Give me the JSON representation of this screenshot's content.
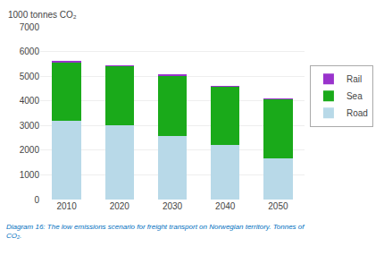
{
  "chart_data": {
    "type": "bar",
    "stacked": true,
    "categories": [
      "2010",
      "2020",
      "2030",
      "2040",
      "2050"
    ],
    "series": [
      {
        "name": "Road",
        "color": "#b8d9e8",
        "values": [
          3200,
          3000,
          2570,
          2200,
          1680
        ]
      },
      {
        "name": "Sea",
        "color": "#1aaa1a",
        "values": [
          2350,
          2420,
          2470,
          2380,
          2390
        ]
      },
      {
        "name": "Rail",
        "color": "#9933cc",
        "values": [
          50,
          20,
          10,
          10,
          10
        ]
      }
    ],
    "ylabel": "1000 tonnes CO₂",
    "ylim": [
      0,
      7000
    ],
    "yticks": [
      0,
      1000,
      2000,
      3000,
      4000,
      5000,
      6000,
      7000
    ],
    "grid": true,
    "legend": "right",
    "annotations": [
      {
        "text": "Diagram 16: The low emissions scenario for freight transport on Norwegian territory. Tonnes of\nCO₂.",
        "color": "#0070c0"
      }
    ]
  }
}
